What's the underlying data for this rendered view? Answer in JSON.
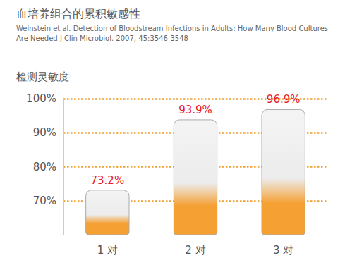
{
  "chart_data": {
    "type": "bar",
    "title": "血培养组合的累积敏感性",
    "subtitle": "Weinstein et al. Detection of Bloodstream Infections in Adults: How Many Blood Cultures Are Needed J Clin Microbiol. 2007; 45:3546-3548",
    "ylabel": "检测灵敏度",
    "categories": [
      "1 对",
      "2 对",
      "3 对"
    ],
    "values": [
      73.2,
      93.9,
      96.9
    ],
    "value_labels": [
      "73.2%",
      "93.9%",
      "96.9%"
    ],
    "color": "#f5a033",
    "ylim": [
      60,
      100
    ],
    "yticks": [
      {
        "value": 70,
        "label": "70%"
      },
      {
        "value": 80,
        "label": "80%"
      },
      {
        "value": 90,
        "label": "90%"
      },
      {
        "value": 100,
        "label": "100%"
      }
    ],
    "grid": true,
    "data_labels": true
  }
}
